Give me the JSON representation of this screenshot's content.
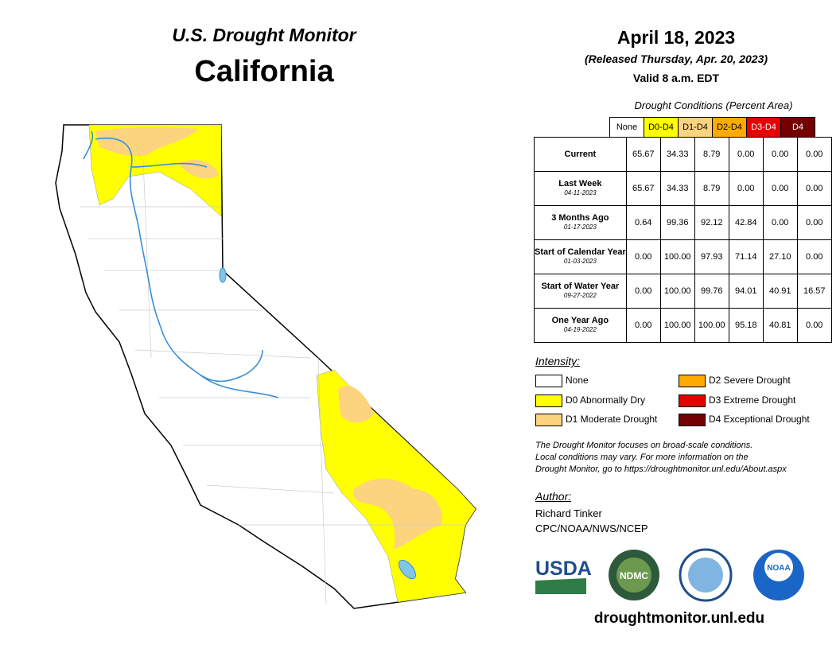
{
  "header": {
    "title": "U.S. Drought Monitor",
    "region": "California"
  },
  "info": {
    "date": "April 18, 2023",
    "released": "(Released Thursday, Apr. 20, 2023)",
    "valid": "Valid 8 a.m. EDT"
  },
  "table": {
    "caption": "Drought Conditions (Percent Area)",
    "columns": [
      "None",
      "D0-D4",
      "D1-D4",
      "D2-D4",
      "D3-D4",
      "D4"
    ],
    "rows": [
      {
        "label": "Current",
        "values": [
          "65.67",
          "34.33",
          "8.79",
          "0.00",
          "0.00",
          "0.00"
        ]
      },
      {
        "label": "Last Week",
        "date": "04-11-2023",
        "values": [
          "65.67",
          "34.33",
          "8.79",
          "0.00",
          "0.00",
          "0.00"
        ]
      },
      {
        "label": "3 Months Ago",
        "date": "01-17-2023",
        "values": [
          "0.64",
          "99.36",
          "92.12",
          "42.84",
          "0.00",
          "0.00"
        ]
      },
      {
        "label": "Start of Calendar Year",
        "date": "01-03-2023",
        "values": [
          "0.00",
          "100.00",
          "97.93",
          "71.14",
          "27.10",
          "0.00"
        ]
      },
      {
        "label": "Start of Water Year",
        "date": "09-27-2022",
        "values": [
          "0.00",
          "100.00",
          "99.76",
          "94.01",
          "40.91",
          "16.57"
        ]
      },
      {
        "label": "One Year Ago",
        "date": "04-19-2022",
        "values": [
          "0.00",
          "100.00",
          "100.00",
          "95.18",
          "40.81",
          "0.00"
        ]
      }
    ]
  },
  "legend": {
    "title": "Intensity:",
    "items": [
      "None",
      "D0 Abnormally Dry",
      "D1 Moderate Drought",
      "D2 Severe Drought",
      "D3 Extreme Drought",
      "D4 Exceptional Drought"
    ]
  },
  "note": [
    "The Drought Monitor focuses on broad-scale conditions.",
    "Local conditions may vary. For more information on the",
    "Drought Monitor, go to https://droughtmonitor.unl.edu/About.aspx"
  ],
  "author": {
    "title": "Author:",
    "lines": [
      "Richard Tinker",
      "CPC/NOAA/NWS/NCEP"
    ]
  },
  "logos": [
    "USDA",
    "NDMC",
    "NOAA"
  ],
  "url": "droughtmonitor.unl.edu"
}
